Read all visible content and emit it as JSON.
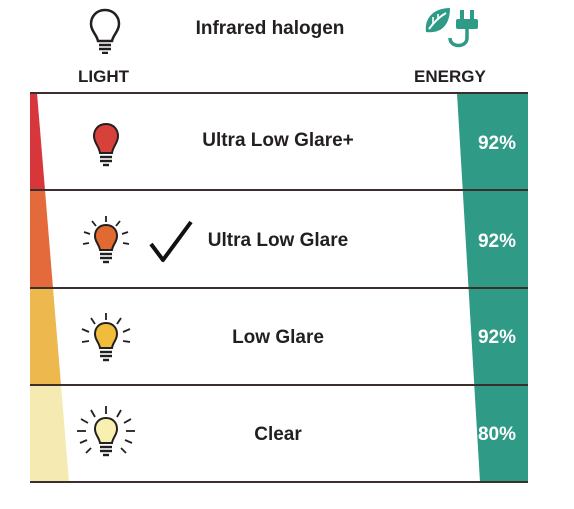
{
  "header": {
    "title": "Infrared halogen",
    "light_label": "LIGHT",
    "energy_label": "ENERGY",
    "light_icon": "lightbulb-outline-icon",
    "energy_icon": "leaf-plug-icon"
  },
  "rows": [
    {
      "label": "Ultra Low Glare+",
      "energy_pct": 92,
      "energy_text": "92%",
      "bulb_color": "#d8403a",
      "selected": false
    },
    {
      "label": "Ultra Low Glare",
      "energy_pct": 92,
      "energy_text": "92%",
      "bulb_color": "#e06a30",
      "selected": true
    },
    {
      "label": "Low Glare",
      "energy_pct": 92,
      "energy_text": "92%",
      "bulb_color": "#f0bc3c",
      "selected": false
    },
    {
      "label": "Clear",
      "energy_pct": 80,
      "energy_text": "80%",
      "bulb_color": "#f8f0b0",
      "selected": false
    }
  ],
  "colors": {
    "energy_bar": "#2f9a86",
    "light_wedge": [
      "#d7373a",
      "#e46a3b",
      "#edb84d",
      "#f5ebb2"
    ],
    "energy_icon": "#2f9a86"
  }
}
